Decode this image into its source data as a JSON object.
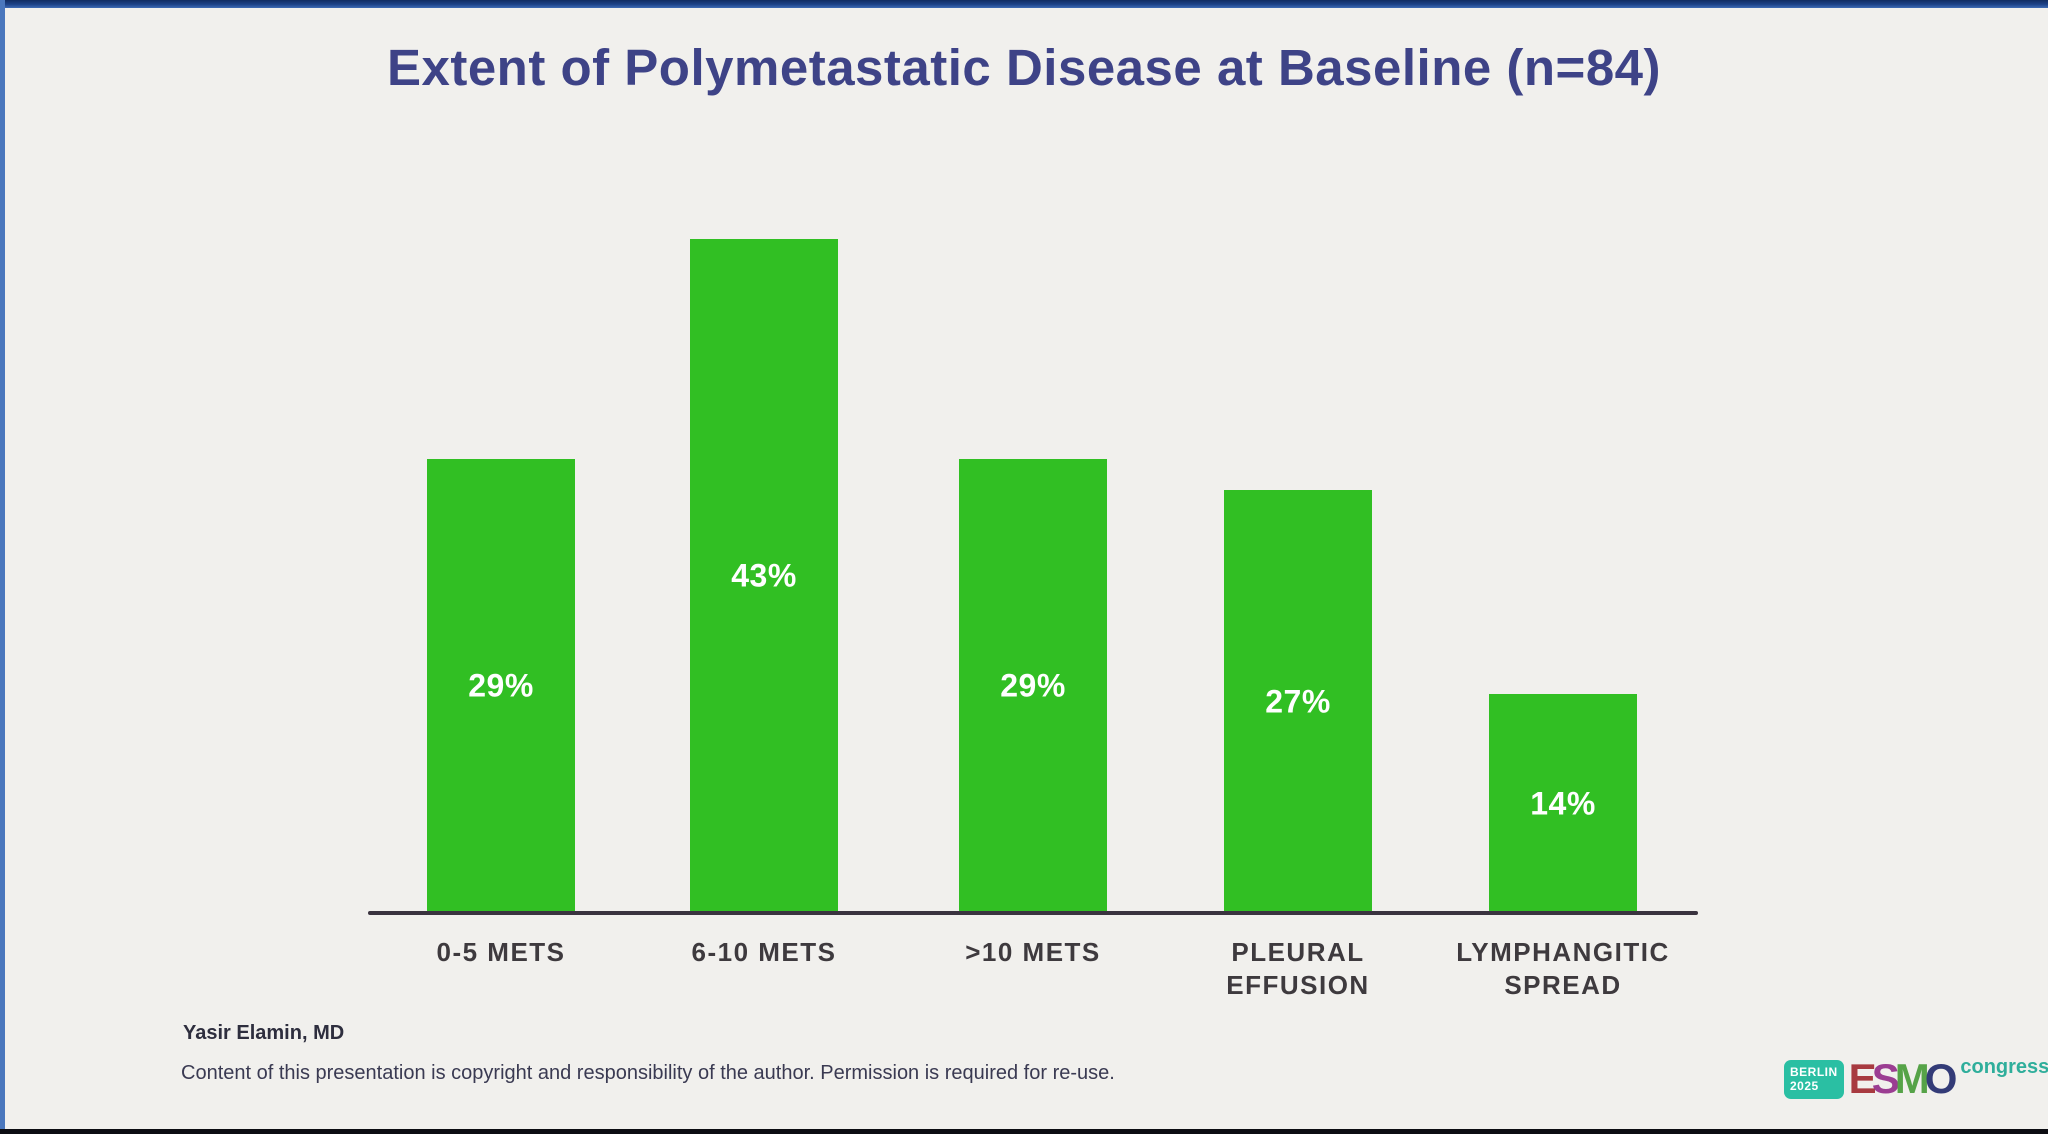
{
  "slide": {
    "title": "Extent of Polymetastatic Disease at Baseline (n=84)",
    "title_color": "#3e4387",
    "background": "#f1f0ed"
  },
  "chart_data": {
    "type": "bar",
    "title": "Extent of Polymetastatic Disease at Baseline (n=84)",
    "n": 84,
    "categories": [
      "0-5 METS",
      "6-10 METS",
      ">10 METS",
      "PLEURAL\nEFFUSION",
      "LYMPHANGITIC\nSPREAD"
    ],
    "values": [
      29,
      43,
      29,
      27,
      14
    ],
    "value_labels": [
      "29%",
      "43%",
      "29%",
      "27%",
      "14%"
    ],
    "unit": "%",
    "xlabel": "",
    "ylabel": "",
    "ylim": [
      0,
      45
    ],
    "grid": false,
    "legend": false,
    "bar_color": "#31bf23",
    "value_label_color": "#ffffff",
    "category_label_color": "#3e3a3e",
    "axis_line_color": "#3a333f"
  },
  "footer": {
    "author": "Yasir Elamin, MD",
    "copyright": "Content of this presentation is copyright and responsibility of the author. Permission is required for re-use."
  },
  "esmo_logo": {
    "badge_text": "BERLIN\n2025",
    "badge_color": "#2abfa3",
    "name_letters": [
      "E",
      "S",
      "M",
      "O"
    ],
    "letter_colors": [
      "#a83a40",
      "#9b3d92",
      "#56a348",
      "#333b77"
    ],
    "suffix": "congress",
    "suffix_color": "#2fae9b"
  }
}
